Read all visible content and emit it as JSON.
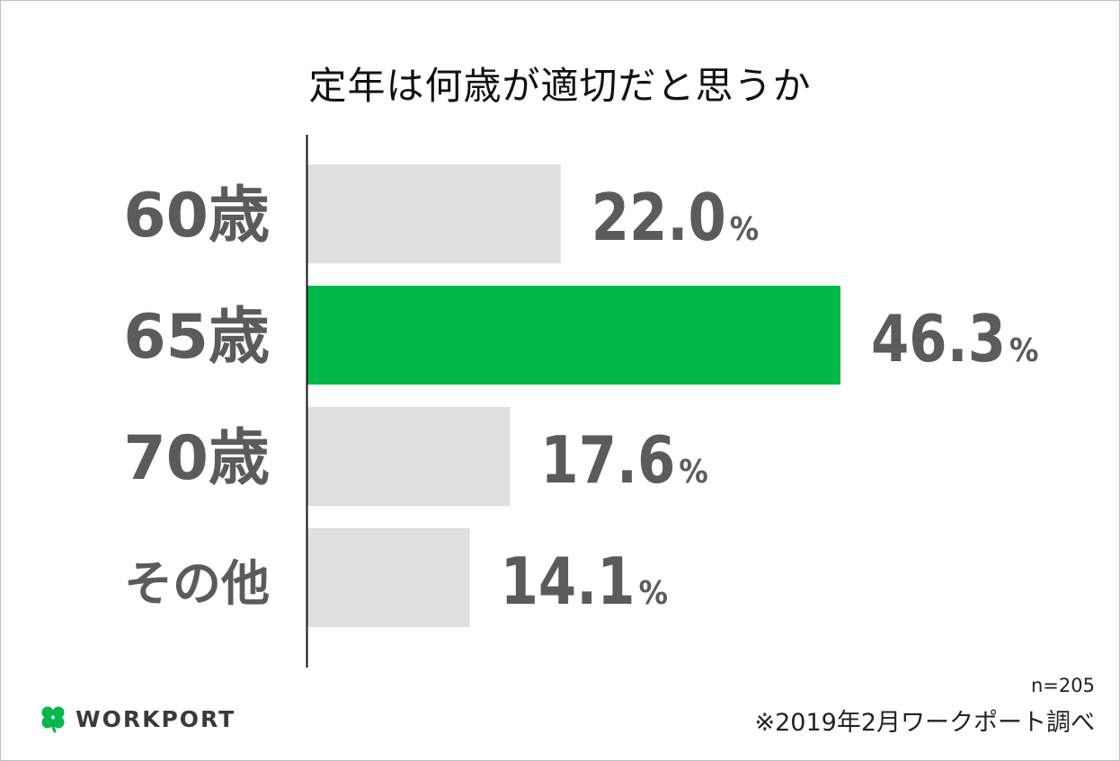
{
  "chart_data": {
    "type": "bar",
    "orientation": "horizontal",
    "title": "定年は何歳が適切だと思うか",
    "categories": [
      "60歳",
      "65歳",
      "70歳",
      "その他"
    ],
    "values": [
      22.0,
      46.3,
      17.6,
      14.1
    ],
    "value_labels": [
      "22.0",
      "46.3",
      "17.6",
      "14.1"
    ],
    "unit": "%",
    "highlight_index": 1,
    "colors": {
      "default_bar": "#e0e0e0",
      "highlight_bar": "#00b74a",
      "label_text": "#5b5b5b"
    },
    "xlim": [
      0,
      50
    ],
    "grid": false,
    "legend": "none"
  },
  "footer": {
    "sample_size": "n=205",
    "source": "※2019年2月ワークポート調べ"
  },
  "brand": {
    "name": "WORKPORT",
    "icon": "clover-icon",
    "icon_color": "#00b74a"
  }
}
